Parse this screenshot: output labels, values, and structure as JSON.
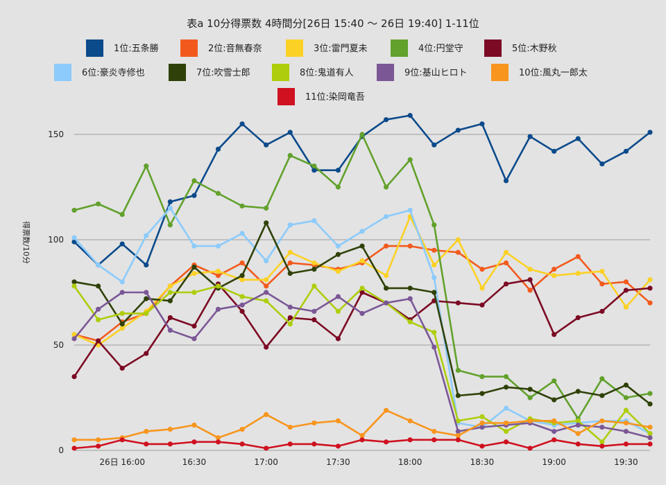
{
  "chart_data": {
    "type": "line",
    "title": "表a 10分得票数 4時間分[26日 15:40 〜 26日 19:40] 1-11位",
    "ylabel": "得票数/10分",
    "xlabel": "",
    "ylim": [
      0,
      165
    ],
    "yticks": [
      0,
      50,
      100,
      150
    ],
    "x": [
      "15:40",
      "15:50",
      "16:00",
      "16:10",
      "16:20",
      "16:30",
      "16:40",
      "16:50",
      "17:00",
      "17:10",
      "17:20",
      "17:30",
      "17:40",
      "17:50",
      "18:00",
      "18:10",
      "18:20",
      "18:30",
      "18:40",
      "18:50",
      "19:00",
      "19:10",
      "19:20",
      "19:30",
      "19:40"
    ],
    "xtick_labels": [
      {
        "x": "16:00",
        "label": "26日 16:00"
      },
      {
        "x": "16:30",
        "label": "16:30"
      },
      {
        "x": "17:00",
        "label": "17:00"
      },
      {
        "x": "17:30",
        "label": "17:30"
      },
      {
        "x": "18:00",
        "label": "18:00"
      },
      {
        "x": "18:30",
        "label": "18:30"
      },
      {
        "x": "19:00",
        "label": "19:00"
      },
      {
        "x": "19:30",
        "label": "19:30"
      }
    ],
    "grid": true,
    "legend_position": "top",
    "series": [
      {
        "name": "1位:五条勝",
        "color": "#0b4a8b",
        "values": [
          99,
          88,
          98,
          88,
          118,
          121,
          143,
          155,
          145,
          151,
          133,
          133,
          149,
          157,
          159,
          145,
          152,
          155,
          128,
          149,
          142,
          148,
          136,
          142,
          151
        ]
      },
      {
        "name": "2位:音無春奈",
        "color": "#f25a1d",
        "values": [
          55,
          52,
          61,
          65,
          78,
          88,
          83,
          89,
          78,
          89,
          88,
          86,
          89,
          97,
          97,
          95,
          94,
          86,
          89,
          76,
          86,
          92,
          79,
          80,
          70
        ]
      },
      {
        "name": "3位:雷門夏未",
        "color": "#fbd125",
        "values": [
          55,
          50,
          58,
          66,
          78,
          84,
          85,
          81,
          81,
          94,
          89,
          85,
          90,
          83,
          111,
          88,
          100,
          77,
          94,
          86,
          83,
          84,
          85,
          68,
          81
        ]
      },
      {
        "name": "4位:円堂守",
        "color": "#62a12c",
        "values": [
          114,
          117,
          112,
          135,
          107,
          128,
          122,
          116,
          115,
          140,
          135,
          125,
          150,
          125,
          138,
          107,
          38,
          35,
          35,
          25,
          33,
          15,
          34,
          25,
          27
        ]
      },
      {
        "name": "5位:木野秋",
        "color": "#7c0a24",
        "values": [
          35,
          52,
          39,
          46,
          63,
          59,
          79,
          66,
          49,
          63,
          62,
          53,
          75,
          70,
          62,
          71,
          70,
          69,
          79,
          81,
          55,
          63,
          66,
          76,
          77
        ]
      },
      {
        "name": "6位:豪炎寺修也",
        "color": "#8ccbfb",
        "values": [
          101,
          88,
          80,
          102,
          115,
          97,
          97,
          103,
          90,
          107,
          109,
          97,
          104,
          111,
          114,
          82,
          13,
          11,
          20,
          14,
          12,
          13,
          14,
          14,
          8
        ]
      },
      {
        "name": "7位:吹雪士郎",
        "color": "#2f4108",
        "values": [
          80,
          78,
          60,
          72,
          71,
          87,
          77,
          83,
          108,
          84,
          86,
          93,
          97,
          77,
          77,
          75,
          26,
          27,
          30,
          29,
          24,
          28,
          26,
          31,
          22
        ]
      },
      {
        "name": "8位:鬼道有人",
        "color": "#aecd0c",
        "values": [
          78,
          62,
          65,
          65,
          75,
          75,
          78,
          73,
          71,
          60,
          78,
          66,
          77,
          70,
          61,
          56,
          14,
          16,
          9,
          15,
          13,
          14,
          4,
          19,
          8
        ]
      },
      {
        "name": "9位:基山ヒロト",
        "color": "#7b5796",
        "values": [
          53,
          67,
          75,
          75,
          57,
          53,
          67,
          69,
          75,
          68,
          66,
          73,
          65,
          70,
          72,
          49,
          9,
          11,
          12,
          13,
          9,
          12,
          11,
          9,
          6
        ]
      },
      {
        "name": "10位:風丸一郎太",
        "color": "#f7951d",
        "values": [
          5,
          5,
          6,
          9,
          10,
          12,
          6,
          10,
          17,
          11,
          13,
          14,
          7,
          19,
          14,
          9,
          7,
          13,
          13,
          14,
          14,
          8,
          14,
          13,
          11
        ]
      },
      {
        "name": "11位:染岡竜吾",
        "color": "#cf1120",
        "values": [
          1,
          2,
          5,
          3,
          3,
          4,
          4,
          3,
          1,
          3,
          3,
          2,
          5,
          4,
          5,
          5,
          5,
          2,
          4,
          1,
          5,
          3,
          2,
          3,
          3
        ]
      }
    ]
  }
}
